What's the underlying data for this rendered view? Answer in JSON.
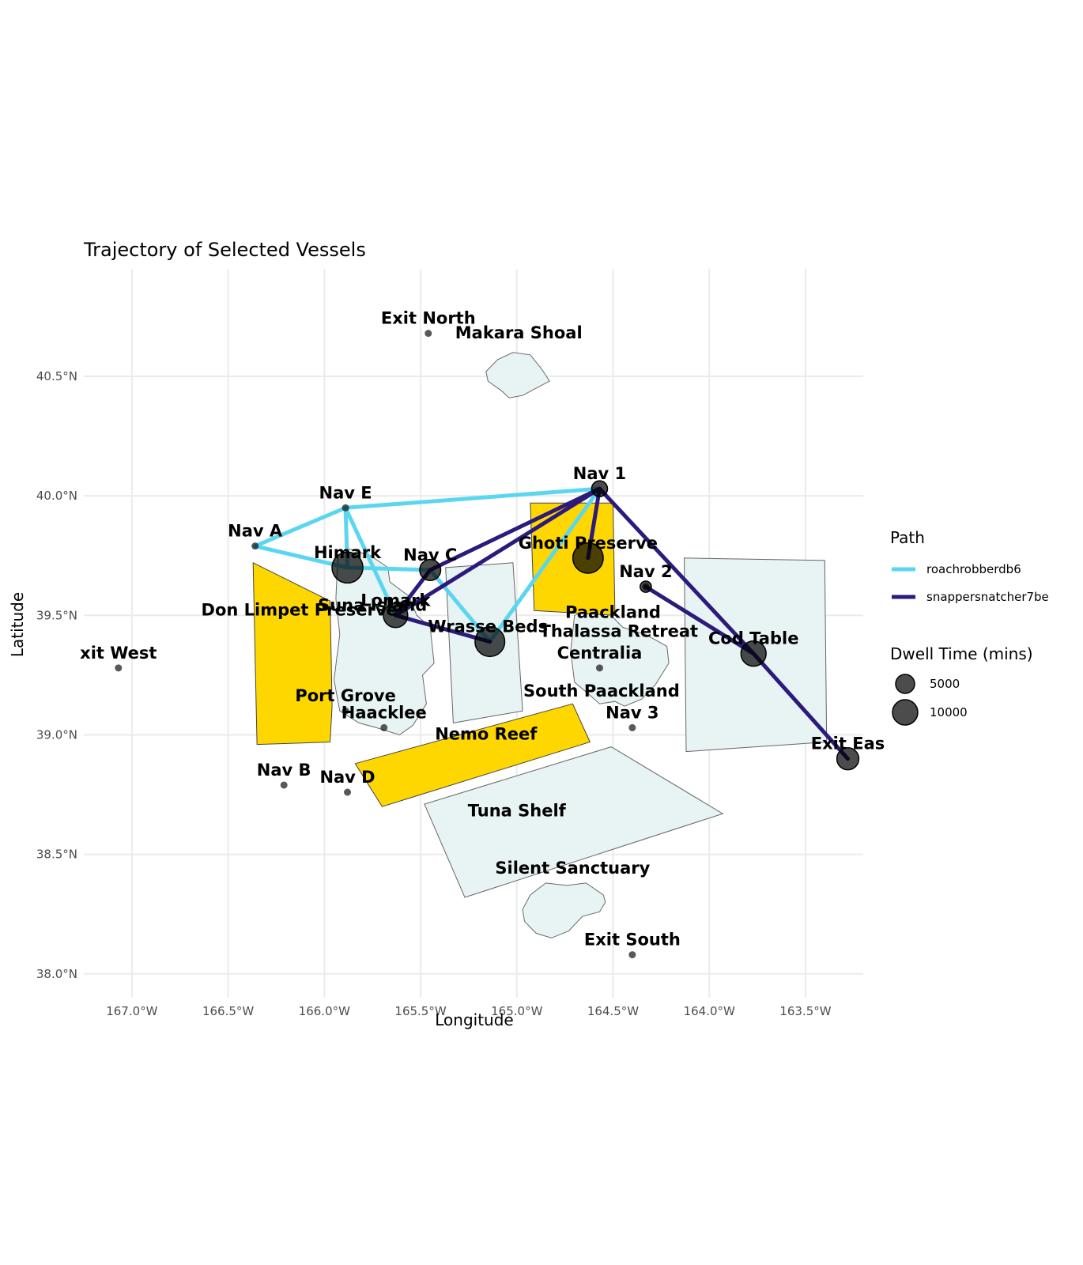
{
  "title": "Trajectory of Selected Vessels",
  "xlabel": "Longitude",
  "ylabel": "Latitude",
  "colors": {
    "roachrobberdb6": "#5bd6f0",
    "snappersnatcher7be": "#2c1b7a",
    "preserve_fill": "#ffd700",
    "zone_fill": "#e8f3f3"
  },
  "chart_data": {
    "type": "map",
    "title": "Trajectory of Selected Vessels",
    "xlabel": "Longitude",
    "ylabel": "Latitude",
    "xlim": [
      -167.25,
      -163.2
    ],
    "ylim": [
      37.9,
      40.95
    ],
    "x_ticks": [
      -167.0,
      -166.5,
      -166.0,
      -165.5,
      -165.0,
      -164.5,
      -164.0,
      -163.5
    ],
    "x_tick_labels": [
      "167.0°W",
      "166.5°W",
      "166.0°W",
      "165.5°W",
      "165.0°W",
      "164.5°W",
      "164.0°W",
      "163.5°W"
    ],
    "y_ticks": [
      38.0,
      38.5,
      39.0,
      39.5,
      40.0,
      40.5
    ],
    "y_tick_labels": [
      "38.0°N",
      "38.5°N",
      "39.0°N",
      "39.5°N",
      "40.0°N",
      "40.5°N"
    ],
    "grid": true,
    "legend_position": "right",
    "legend": {
      "path_title": "Path",
      "paths": [
        "roachrobberdb6",
        "snappersnatcher7be"
      ],
      "dwell_title": "Dwell Time (mins)",
      "dwell_sizes": [
        5000,
        10000
      ],
      "dwell_labels": [
        "5000",
        "10000"
      ]
    },
    "places": [
      {
        "label": "Exit North",
        "lon": -165.46,
        "lat": 40.68
      },
      {
        "label": "Makara Shoal",
        "lon": -164.99,
        "lat": 40.62
      },
      {
        "label": "Nav 1",
        "lon": -164.57,
        "lat": 40.03
      },
      {
        "label": "Nav E",
        "lon": -165.89,
        "lat": 39.95
      },
      {
        "label": "Nav A",
        "lon": -166.36,
        "lat": 39.79
      },
      {
        "label": "Himark",
        "lon": -165.88,
        "lat": 39.7
      },
      {
        "label": "Nav C",
        "lon": -165.45,
        "lat": 39.69
      },
      {
        "label": "Ghoti Preserve",
        "lon": -164.63,
        "lat": 39.74
      },
      {
        "label": "Nav 2",
        "lon": -164.33,
        "lat": 39.62
      },
      {
        "label": "Lomark",
        "lon": -165.63,
        "lat": 39.5
      },
      {
        "label": "Suna Island",
        "lon": -165.75,
        "lat": 39.48
      },
      {
        "label": "Wrasse Beds",
        "lon": -165.15,
        "lat": 39.39
      },
      {
        "label": "Don Limpet Preserve",
        "lon": -166.13,
        "lat": 39.46
      },
      {
        "label": "Paackland",
        "lon": -164.5,
        "lat": 39.45
      },
      {
        "label": "Thalassa Retreat",
        "lon": -164.47,
        "lat": 39.37
      },
      {
        "label": "Centralia",
        "lon": -164.57,
        "lat": 39.28
      },
      {
        "label": "Cod Table",
        "lon": -163.77,
        "lat": 39.34
      },
      {
        "label": "xit West",
        "lon": -167.07,
        "lat": 39.28
      },
      {
        "label": "Port Grove",
        "lon": -165.89,
        "lat": 39.1
      },
      {
        "label": "Haacklee",
        "lon": -165.69,
        "lat": 39.03
      },
      {
        "label": "South Paackland",
        "lon": -164.56,
        "lat": 39.12
      },
      {
        "label": "Nav 3",
        "lon": -164.4,
        "lat": 39.03
      },
      {
        "label": "Nemo Reef",
        "lon": -165.16,
        "lat": 38.94
      },
      {
        "label": "Exit Eas",
        "lon": -163.28,
        "lat": 38.9
      },
      {
        "label": "Nav B",
        "lon": -166.21,
        "lat": 38.79
      },
      {
        "label": "Nav D",
        "lon": -165.88,
        "lat": 38.76
      },
      {
        "label": "Tuna Shelf",
        "lon": -165.0,
        "lat": 38.62
      },
      {
        "label": "Silent Sanctuary",
        "lon": -164.71,
        "lat": 38.38
      },
      {
        "label": "Exit South",
        "lon": -164.4,
        "lat": 38.08
      }
    ],
    "dwell_points": [
      {
        "lon": -165.88,
        "lat": 39.7,
        "dwell": 12000
      },
      {
        "lon": -165.45,
        "lat": 39.69,
        "dwell": 5000
      },
      {
        "lon": -165.63,
        "lat": 39.5,
        "dwell": 7000
      },
      {
        "lon": -165.14,
        "lat": 39.39,
        "dwell": 11000
      },
      {
        "lon": -164.63,
        "lat": 39.74,
        "dwell": 11500
      },
      {
        "lon": -164.57,
        "lat": 40.03,
        "dwell": 2500
      },
      {
        "lon": -164.33,
        "lat": 39.62,
        "dwell": 1000
      },
      {
        "lon": -163.77,
        "lat": 39.34,
        "dwell": 7500
      },
      {
        "lon": -163.28,
        "lat": 38.9,
        "dwell": 5500
      }
    ],
    "series": [
      {
        "name": "roachrobberdb6",
        "lon": [
          -165.14,
          -165.45,
          -165.88,
          -166.36,
          -165.89,
          -164.57,
          -165.14,
          -165.63,
          -165.89,
          -165.88,
          -165.45,
          -165.14
        ],
        "lat": [
          39.39,
          39.69,
          39.7,
          39.79,
          39.95,
          40.03,
          39.39,
          39.5,
          39.95,
          39.7,
          39.69,
          39.39
        ]
      },
      {
        "name": "snappersnatcher7be",
        "lon": [
          -164.63,
          -164.57,
          -165.45,
          -165.63,
          -165.14,
          -165.63,
          -164.57,
          -163.77,
          -163.28,
          -163.77,
          -164.33
        ],
        "lat": [
          39.74,
          40.03,
          39.69,
          39.5,
          39.39,
          39.5,
          40.03,
          39.34,
          38.9,
          39.34,
          39.62
        ]
      }
    ],
    "regions": [
      {
        "name": "Don Limpet Preserve",
        "kind": "preserve",
        "lon": [
          -166.37,
          -165.97,
          -165.96,
          -165.97,
          -166.35,
          -166.37
        ],
        "lat": [
          39.72,
          39.56,
          39.12,
          38.97,
          38.96,
          39.72
        ]
      },
      {
        "name": "Ghoti Preserve",
        "kind": "preserve",
        "lon": [
          -164.93,
          -164.5,
          -164.49,
          -164.91,
          -164.93
        ],
        "lat": [
          39.97,
          39.97,
          39.5,
          39.52,
          39.97
        ]
      },
      {
        "name": "Nemo Reef",
        "kind": "preserve",
        "lon": [
          -165.84,
          -164.71,
          -164.62,
          -165.7,
          -165.84
        ],
        "lat": [
          38.88,
          39.13,
          38.97,
          38.7,
          38.88
        ]
      },
      {
        "name": "Wrasse Beds",
        "kind": "zone",
        "lon": [
          -165.37,
          -165.02,
          -164.97,
          -165.33,
          -165.37
        ],
        "lat": [
          39.7,
          39.72,
          39.1,
          39.05,
          39.7
        ]
      },
      {
        "name": "Cod Table",
        "kind": "zone",
        "lon": [
          -164.13,
          -163.4,
          -163.39,
          -164.12,
          -164.13
        ],
        "lat": [
          39.74,
          39.73,
          38.97,
          38.93,
          39.74
        ]
      },
      {
        "name": "Tuna Shelf",
        "kind": "zone",
        "lon": [
          -165.48,
          -164.51,
          -163.93,
          -165.27,
          -165.48
        ],
        "lat": [
          38.71,
          38.95,
          38.67,
          38.32,
          38.71
        ]
      }
    ],
    "islands": [
      {
        "name": "Suna Island",
        "lon": [
          -165.93,
          -165.88,
          -165.76,
          -165.67,
          -165.66,
          -165.56,
          -165.52,
          -165.45,
          -165.43,
          -165.49,
          -165.47,
          -165.54,
          -165.61,
          -165.73,
          -165.82,
          -165.92,
          -165.95,
          -165.92,
          -165.94,
          -165.93
        ],
        "lat": [
          39.75,
          39.78,
          39.75,
          39.7,
          39.64,
          39.58,
          39.5,
          39.45,
          39.3,
          39.25,
          39.13,
          39.04,
          39.0,
          39.03,
          39.05,
          39.1,
          39.23,
          39.42,
          39.57,
          39.75
        ]
      },
      {
        "name": "Paackland",
        "lon": [
          -164.7,
          -164.62,
          -164.51,
          -164.45,
          -164.33,
          -164.22,
          -164.21,
          -164.28,
          -164.35,
          -164.44,
          -164.49,
          -164.57,
          -164.64,
          -164.7,
          -164.72,
          -164.7
        ],
        "lat": [
          39.5,
          39.52,
          39.5,
          39.45,
          39.42,
          39.37,
          39.3,
          39.21,
          39.15,
          39.12,
          39.14,
          39.13,
          39.18,
          39.22,
          39.35,
          39.5
        ]
      },
      {
        "name": "Makara Shoal",
        "lon": [
          -165.16,
          -165.1,
          -165.02,
          -164.93,
          -164.87,
          -164.83,
          -164.9,
          -164.97,
          -165.04,
          -165.08,
          -165.15,
          -165.16
        ],
        "lat": [
          40.52,
          40.57,
          40.6,
          40.59,
          40.53,
          40.48,
          40.45,
          40.42,
          40.41,
          40.44,
          40.48,
          40.52
        ]
      },
      {
        "name": "Silent Sanctuary",
        "lon": [
          -164.97,
          -164.93,
          -164.85,
          -164.74,
          -164.64,
          -164.55,
          -164.54,
          -164.57,
          -164.66,
          -164.73,
          -164.82,
          -164.9,
          -164.96,
          -164.97
        ],
        "lat": [
          38.27,
          38.33,
          38.38,
          38.37,
          38.38,
          38.33,
          38.3,
          38.26,
          38.24,
          38.18,
          38.15,
          38.17,
          38.22,
          38.27
        ]
      }
    ]
  }
}
